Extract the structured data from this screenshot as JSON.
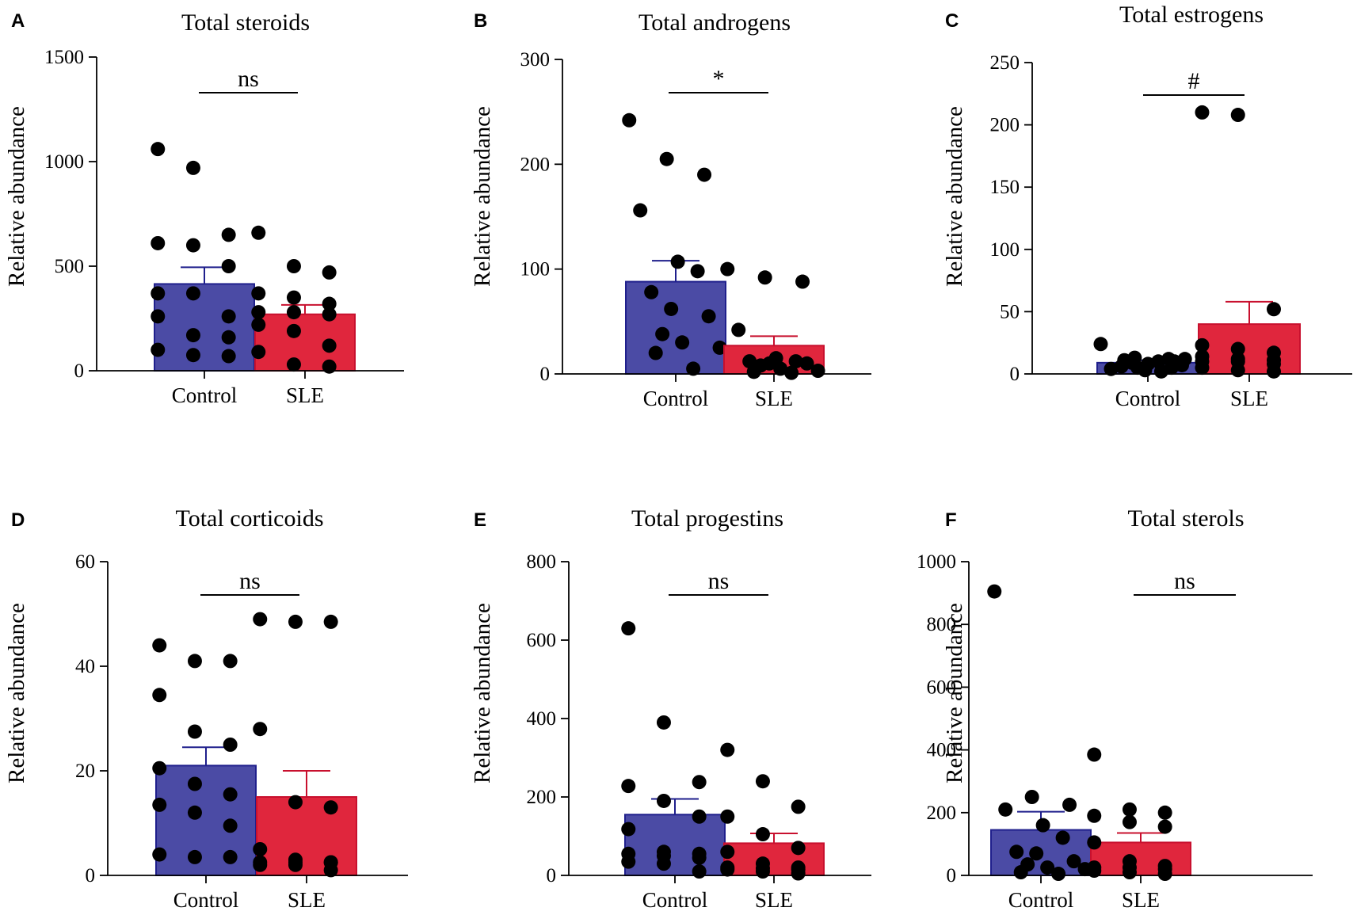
{
  "colors": {
    "control_fill": "#4B4BA5",
    "control_stroke": "#1F1F8C",
    "sle_fill": "#E0263D",
    "sle_stroke": "#C8102E",
    "point": "#000000",
    "axis": "#000000"
  },
  "chart_data": [
    {
      "panel": "A",
      "type": "bar",
      "title": "Total steroids",
      "ylabel": "Relative abundance",
      "xlabel": "",
      "categories": [
        "Control",
        "SLE"
      ],
      "ylim": [
        0,
        1500
      ],
      "yticks": [
        0,
        500,
        1000,
        1500
      ],
      "significance": "ns",
      "series": [
        {
          "name": "Control",
          "mean": 415,
          "sem": 80,
          "points": [
            1060,
            970,
            650,
            610,
            600,
            500,
            370,
            370,
            260,
            260,
            170,
            160,
            100,
            75,
            70
          ]
        },
        {
          "name": "SLE",
          "mean": 270,
          "sem": 45,
          "points": [
            660,
            500,
            470,
            370,
            350,
            320,
            280,
            280,
            270,
            220,
            190,
            120,
            90,
            30,
            20
          ]
        }
      ]
    },
    {
      "panel": "B",
      "type": "bar",
      "title": "Total androgens",
      "ylabel": "Relative abundance",
      "xlabel": "",
      "categories": [
        "Control",
        "SLE"
      ],
      "ylim": [
        0,
        300
      ],
      "yticks": [
        0,
        100,
        200,
        300
      ],
      "significance": "*",
      "series": [
        {
          "name": "Control",
          "mean": 88,
          "sem": 20,
          "points": [
            242,
            205,
            190,
            156,
            107,
            98,
            78,
            62,
            55,
            38,
            30,
            25,
            20,
            5
          ]
        },
        {
          "name": "SLE",
          "mean": 27,
          "sem": 9,
          "points": [
            100,
            92,
            88,
            42,
            15,
            12,
            12,
            10,
            10,
            8,
            5,
            3,
            2,
            1
          ]
        }
      ]
    },
    {
      "panel": "C",
      "type": "bar",
      "title": "Total estrogens",
      "ylabel": "Relative abundance",
      "xlabel": "",
      "categories": [
        "Control",
        "SLE"
      ],
      "ylim": [
        0,
        250
      ],
      "yticks": [
        0,
        50,
        100,
        150,
        200,
        250
      ],
      "significance": "#",
      "series": [
        {
          "name": "Control",
          "mean": 9,
          "sem": 2,
          "points": [
            24,
            13,
            12,
            12,
            11,
            10,
            10,
            9,
            8,
            7,
            6,
            5,
            5,
            4,
            3,
            2
          ]
        },
        {
          "name": "SLE",
          "mean": 40,
          "sem": 18,
          "points": [
            210,
            208,
            52,
            23,
            20,
            17,
            14,
            12,
            11,
            10,
            10,
            8,
            5,
            3,
            2
          ]
        }
      ]
    },
    {
      "panel": "D",
      "type": "bar",
      "title": "Total corticoids",
      "ylabel": "Relative abundance",
      "xlabel": "",
      "categories": [
        "Control",
        "SLE"
      ],
      "ylim": [
        0,
        60
      ],
      "yticks": [
        0,
        20,
        40,
        60
      ],
      "significance": "ns",
      "series": [
        {
          "name": "Control",
          "mean": 21,
          "sem": 3.5,
          "points": [
            44,
            41,
            41,
            34.5,
            27.5,
            25,
            20.5,
            17.5,
            15.5,
            13.5,
            12,
            9.5,
            4,
            3.5,
            3.5
          ]
        },
        {
          "name": "SLE",
          "mean": 15,
          "sem": 5,
          "points": [
            49,
            48.5,
            48.5,
            28,
            14,
            13,
            5,
            3,
            2.5,
            2.5,
            2.5,
            2.5,
            2,
            2,
            1
          ]
        }
      ]
    },
    {
      "panel": "E",
      "type": "bar",
      "title": "Total progestins",
      "ylabel": "Relative abundance",
      "xlabel": "",
      "categories": [
        "Control",
        "SLE"
      ],
      "ylim": [
        0,
        800
      ],
      "yticks": [
        0,
        200,
        400,
        600,
        800
      ],
      "significance": "ns",
      "series": [
        {
          "name": "Control",
          "mean": 155,
          "sem": 40,
          "points": [
            630,
            390,
            238,
            228,
            190,
            150,
            118,
            60,
            55,
            55,
            50,
            45,
            35,
            30,
            10
          ]
        },
        {
          "name": "SLE",
          "mean": 82,
          "sem": 25,
          "points": [
            320,
            240,
            175,
            150,
            105,
            70,
            60,
            30,
            20,
            20,
            18,
            15,
            15,
            10,
            5
          ]
        }
      ]
    },
    {
      "panel": "F",
      "type": "bar",
      "title": "Total sterols",
      "ylabel": "Relative abundance",
      "xlabel": "",
      "categories": [
        "Control",
        "SLE"
      ],
      "ylim": [
        0,
        1000
      ],
      "yticks": [
        0,
        200,
        400,
        600,
        800,
        1000
      ],
      "significance": "ns",
      "series": [
        {
          "name": "Control",
          "mean": 145,
          "sem": 58,
          "points": [
            905,
            250,
            225,
            210,
            160,
            120,
            75,
            70,
            45,
            35,
            25,
            20,
            10,
            5
          ]
        },
        {
          "name": "SLE",
          "mean": 105,
          "sem": 30,
          "points": [
            385,
            210,
            200,
            190,
            170,
            155,
            105,
            45,
            30,
            25,
            25,
            20,
            15,
            10,
            5
          ]
        }
      ]
    }
  ]
}
